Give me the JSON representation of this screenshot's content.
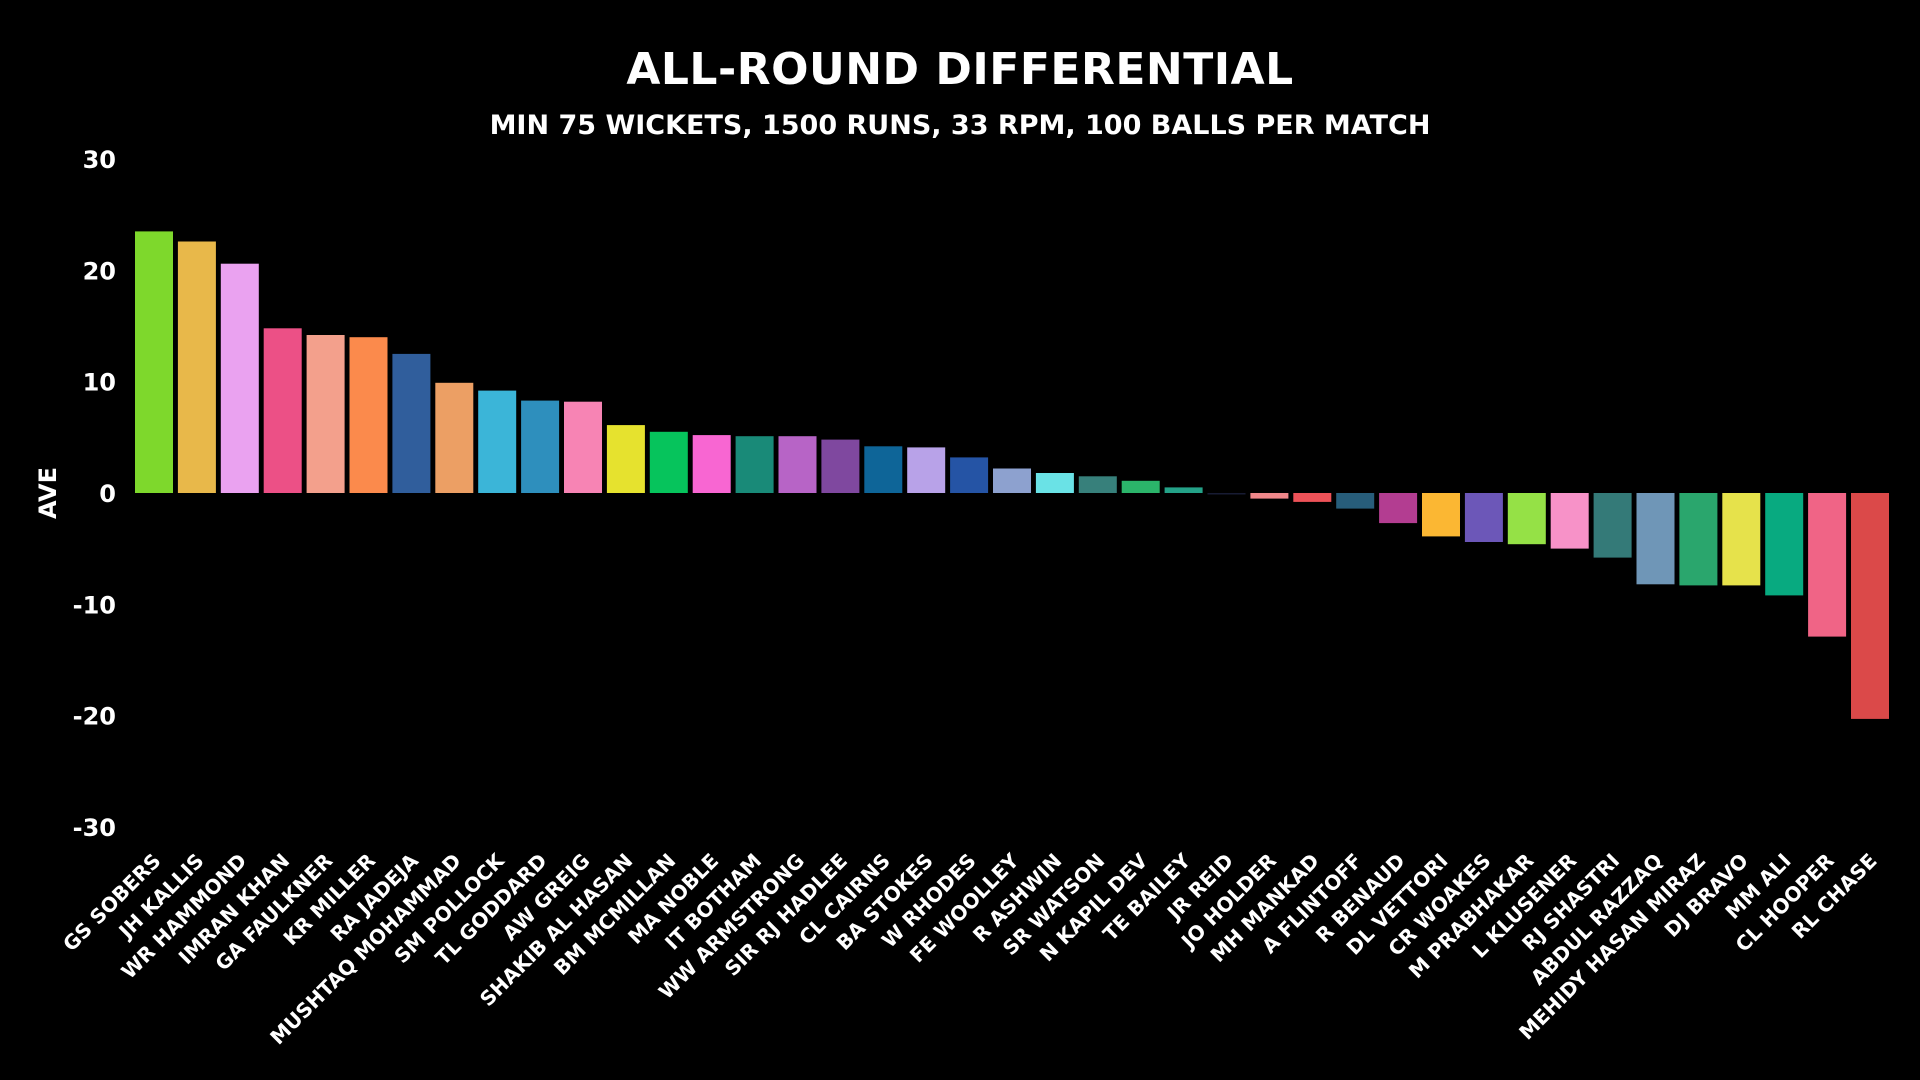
{
  "chart_data": {
    "type": "bar",
    "title": "ALL-ROUND DIFFERENTIAL",
    "subtitle": "MIN 75 WICKETS, 1500 RUNS, 33 RPM, 100 BALLS PER MATCH",
    "xlabel": "",
    "ylabel": "AVE",
    "ylim": [
      -30,
      30
    ],
    "yticks": [
      30,
      20,
      10,
      0,
      -10,
      -20,
      -30
    ],
    "grid": false,
    "legend": "none",
    "categories": [
      "GS SOBERS",
      "JH KALLIS",
      "WR HAMMOND",
      "IMRAN KHAN",
      "GA FAULKNER",
      "KR MILLER",
      "RA JADEJA",
      "MUSHTAQ MOHAMMAD",
      "SM POLLOCK",
      "TL GODDARD",
      "AW GREIG",
      "SHAKIB AL HASAN",
      "BM MCMILLAN",
      "MA NOBLE",
      "IT BOTHAM",
      "WW ARMSTRONG",
      "SIR RJ HADLEE",
      "CL CAIRNS",
      "BA STOKES",
      "W RHODES",
      "FE WOOLLEY",
      "R ASHWIN",
      "SR WATSON",
      "N KAPIL DEV",
      "TE BAILEY",
      "JR REID",
      "JO HOLDER",
      "MH MANKAD",
      "A FLINTOFF",
      "R BENAUD",
      "DL VETTORI",
      "CR WOAKES",
      "M PRABHAKAR",
      "L KLUSENER",
      "RJ SHASTRI",
      "ABDUL RAZZAQ",
      "MEHIDY HASAN MIRAZ",
      "DJ BRAVO",
      "MM ALI",
      "CL HOOPER",
      "RL CHASE"
    ],
    "values": [
      23.5,
      22.6,
      20.6,
      14.8,
      14.2,
      14.0,
      12.5,
      9.9,
      9.2,
      8.3,
      8.2,
      6.1,
      5.5,
      5.2,
      5.1,
      5.1,
      4.8,
      4.2,
      4.1,
      3.2,
      2.2,
      1.8,
      1.5,
      1.1,
      0.5,
      -0.1,
      -0.5,
      -0.8,
      -1.4,
      -2.7,
      -3.9,
      -4.4,
      -4.6,
      -5.0,
      -5.8,
      -8.2,
      -8.3,
      -8.3,
      -9.2,
      -12.9,
      -20.3
    ],
    "colors": [
      "#7ed82c",
      "#e8b84a",
      "#eaa2f0",
      "#ec5086",
      "#f3a08c",
      "#fb8a4c",
      "#305e9c",
      "#ec9f64",
      "#3bb5d8",
      "#2e8fbd",
      "#f784b4",
      "#e6e22e",
      "#06c45c",
      "#f866d2",
      "#198a78",
      "#b764c6",
      "#7f489f",
      "#0e6598",
      "#b8a2e8",
      "#2554a5",
      "#8da1cf",
      "#6ae2e6",
      "#37807b",
      "#2bb46a",
      "#24a288",
      "#171b33",
      "#f0878a",
      "#ed5258",
      "#275d7a",
      "#b33d91",
      "#fbb733",
      "#6c57b8",
      "#95e146",
      "#f792c8",
      "#347a78",
      "#6f96b7",
      "#2aa66d",
      "#e6e24b",
      "#08aa80",
      "#f06486",
      "#db4949"
    ]
  }
}
